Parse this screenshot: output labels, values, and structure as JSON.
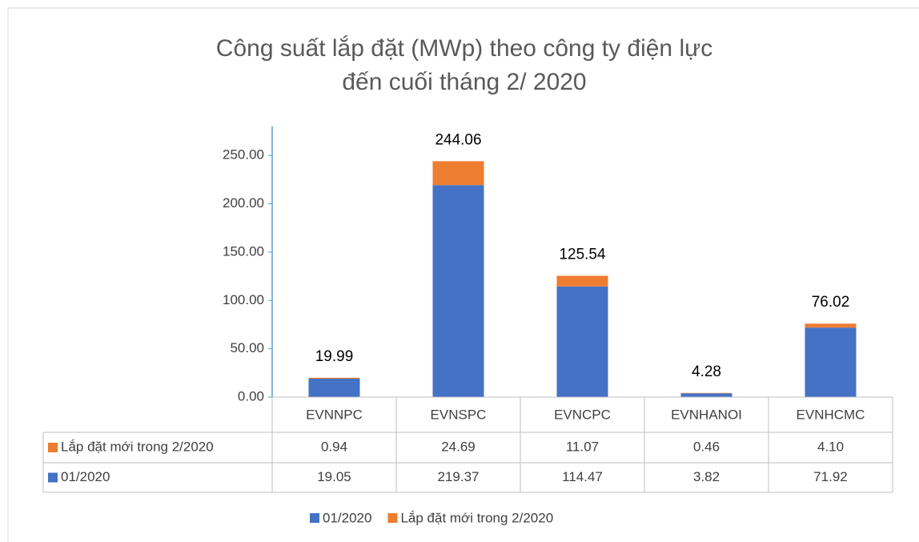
{
  "chart_data": {
    "type": "stacked_bar",
    "title": [
      "Công suất lắp đặt (MWp) theo công ty điện lực",
      "đến cuối tháng 2/ 2020"
    ],
    "categories": [
      "EVNNPC",
      "EVNSPC",
      "EVNCPC",
      "EVNHANOI",
      "EVNHCMC"
    ],
    "series": [
      {
        "name": "01/2020",
        "color": "#4472c4",
        "values": [
          19.05,
          219.37,
          114.47,
          3.82,
          71.92
        ]
      },
      {
        "name": "Lắp đặt mới trong 2/2020",
        "color": "#ed7d31",
        "values": [
          0.94,
          24.69,
          11.07,
          0.46,
          4.1
        ],
        "value_labels": [
          "0.94",
          "24.69",
          "11.07",
          "0.46",
          "4.10"
        ]
      }
    ],
    "totals": [
      19.99,
      244.06,
      125.54,
      4.28,
      76.02
    ],
    "ylim": [
      0,
      280
    ],
    "yticks": [
      {
        "value": 0,
        "label": "0.00"
      },
      {
        "value": 50,
        "label": "50.00"
      },
      {
        "value": 100,
        "label": "100.00"
      },
      {
        "value": 150,
        "label": "150.00"
      },
      {
        "value": 200,
        "label": "200.00"
      },
      {
        "value": 250,
        "label": "250.00"
      }
    ],
    "data_table": true,
    "legend": "bottom"
  }
}
